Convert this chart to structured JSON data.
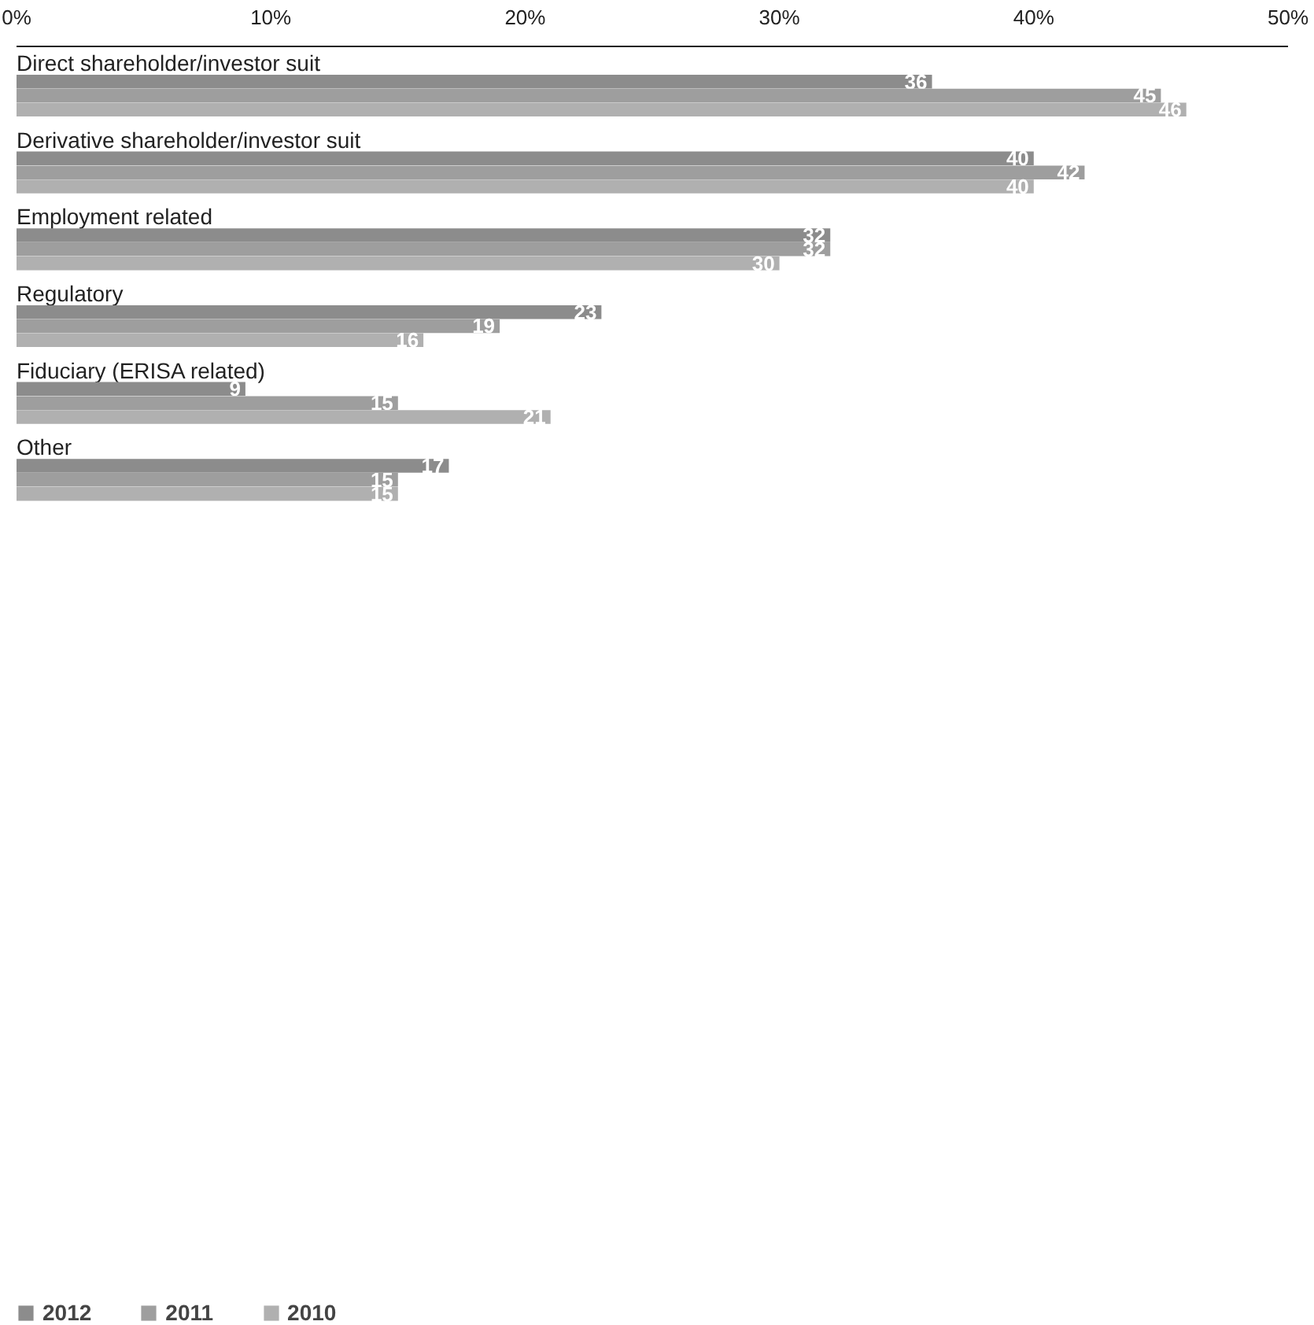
{
  "chart_data": {
    "type": "bar",
    "orientation": "horizontal",
    "categories": [
      "Direct shareholder/investor suit",
      "Derivative shareholder/investor suit",
      "Employment related",
      "Regulatory",
      "Fiduciary (ERISA related)",
      "Other"
    ],
    "series": [
      {
        "name": "2012",
        "color": "#8c8c8c",
        "values": [
          36,
          40,
          32,
          23,
          9,
          17
        ]
      },
      {
        "name": "2011",
        "color": "#9e9e9e",
        "values": [
          45,
          42,
          32,
          19,
          15,
          15
        ]
      },
      {
        "name": "2010",
        "color": "#b0b0b0",
        "values": [
          46,
          40,
          30,
          16,
          21,
          15
        ]
      }
    ],
    "xlim": [
      0,
      50
    ],
    "xticks": [
      {
        "value": 0,
        "label": "0%"
      },
      {
        "value": 10,
        "label": "10%"
      },
      {
        "value": 20,
        "label": "20%"
      },
      {
        "value": 30,
        "label": "30%"
      },
      {
        "value": 40,
        "label": "40%"
      },
      {
        "value": 50,
        "label": "50%"
      }
    ],
    "data_labels": true,
    "grid": false,
    "legend": "bottom left"
  }
}
